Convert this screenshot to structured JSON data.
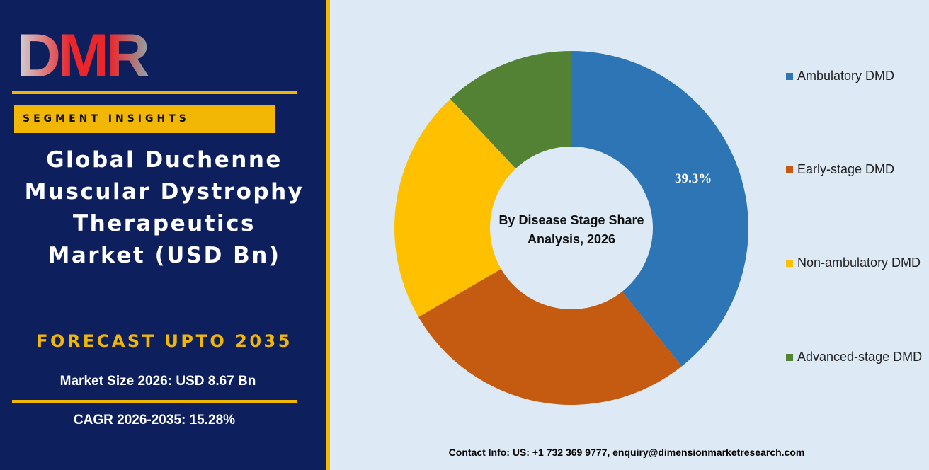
{
  "chart_data": {
    "type": "donut",
    "title": "By Disease Stage Share Analysis, 2026",
    "categories": [
      "Ambulatory DMD",
      "Early-stage DMD",
      "Non-ambulatory DMD",
      "Advanced-stage DMD"
    ],
    "values": [
      39.3,
      27.3,
      21.4,
      12.0
    ],
    "value_labels": [
      "39.3%",
      null,
      null,
      null
    ],
    "colors": [
      "#2e75b6",
      "#c55a11",
      "#ffc000",
      "#548235"
    ],
    "legend": "right"
  },
  "sidebar": {
    "logo": "DMR",
    "tag": "SEGMENT INSIGHTS",
    "title_lines": [
      "Global Duchenne",
      "Muscular Dystrophy",
      "Therapeutics",
      "Market (USD Bn)"
    ],
    "forecast": "FORECAST UPTO 2035",
    "market_size": "Market Size 2026: USD 8.67 Bn",
    "cagr": "CAGR 2026-2035: 15.28%"
  },
  "footer": {
    "contact": "Contact Info: US: +1 732 369 9777, enquiry@dimensionmarketresearch.com"
  }
}
